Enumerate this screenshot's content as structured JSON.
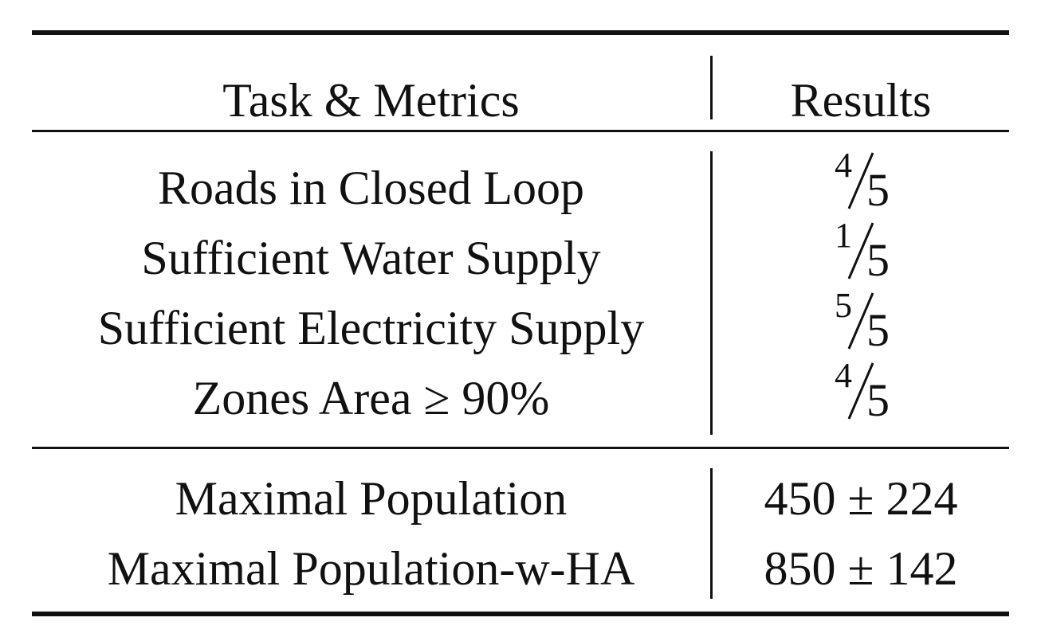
{
  "header": {
    "col1": "Task & Metrics",
    "col2": "Results"
  },
  "rows": [
    {
      "task": "Roads in Closed Loop",
      "num": "4",
      "den": "5"
    },
    {
      "task": "Sufficient Water Supply",
      "num": "1",
      "den": "5"
    },
    {
      "task": "Sufficient Electricity Supply",
      "num": "5",
      "den": "5"
    },
    {
      "task": "Zones Area ≥ 90%",
      "num": "4",
      "den": "5"
    }
  ],
  "population_rows": [
    {
      "task": "Maximal Population",
      "result": "450 ± 224"
    },
    {
      "task": "Maximal Population-w-HA",
      "result": "850 ± 142"
    }
  ]
}
